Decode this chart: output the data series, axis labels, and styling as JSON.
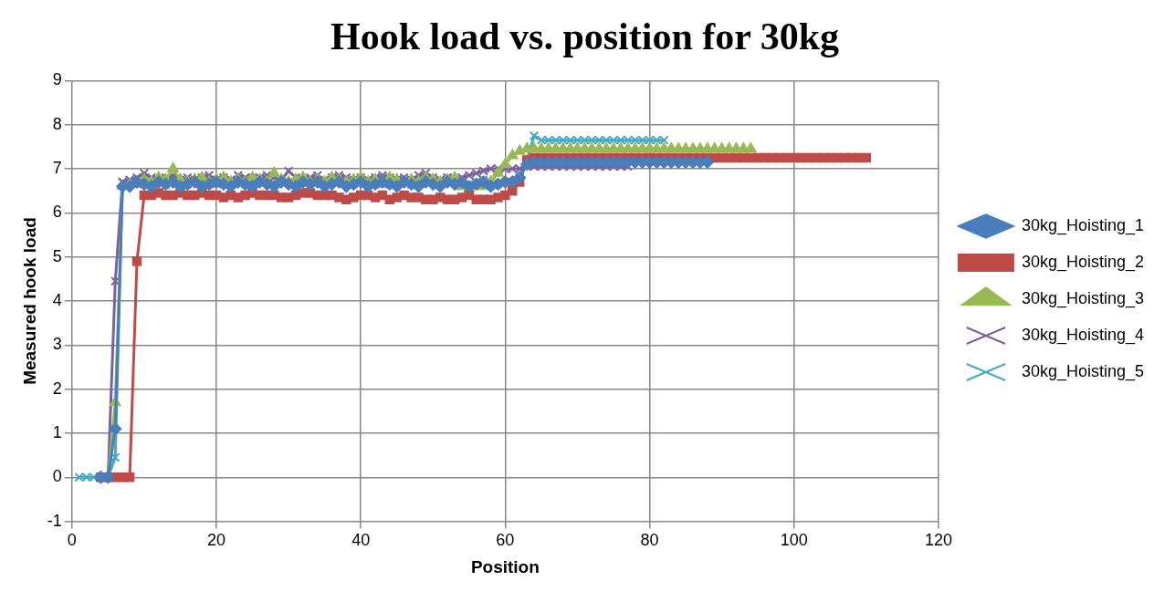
{
  "chart_data": {
    "type": "line",
    "title": "Hook load vs. position for 30kg",
    "xlabel": "Position",
    "ylabel": "Measured hook load",
    "x": [
      1,
      2,
      3,
      4,
      5,
      6,
      7,
      8,
      9,
      10,
      11,
      12,
      13,
      14,
      15,
      16,
      17,
      18,
      19,
      20,
      21,
      22,
      23,
      24,
      25,
      26,
      27,
      28,
      29,
      30,
      31,
      32,
      33,
      34,
      35,
      36,
      37,
      38,
      39,
      40,
      41,
      42,
      43,
      44,
      45,
      46,
      47,
      48,
      49,
      50,
      51,
      52,
      53,
      54,
      55,
      56,
      57,
      58,
      59,
      60,
      61,
      62,
      63,
      64,
      65,
      66,
      67,
      68,
      69,
      70,
      71,
      72,
      73,
      74,
      75,
      76,
      77,
      78,
      79,
      80,
      81,
      82,
      83,
      84,
      85,
      86,
      87,
      88,
      89,
      90,
      91,
      92,
      93,
      94,
      95,
      96,
      97,
      98,
      99,
      100,
      101,
      102,
      103,
      104,
      105,
      106,
      107,
      108,
      109,
      110
    ],
    "xlim": [
      0,
      120
    ],
    "xticks": [
      0,
      20,
      40,
      60,
      80,
      100,
      120
    ],
    "ylim": [
      -1,
      9
    ],
    "yticks": [
      -1,
      0,
      1,
      2,
      3,
      4,
      5,
      6,
      7,
      8,
      9
    ],
    "grid": true,
    "legend": "right",
    "line_style": "solid",
    "series": [
      {
        "name": "30kg_Hoisting_1",
        "color": "#4a7ebb",
        "marker": "diamond",
        "values": [
          null,
          null,
          null,
          0,
          0,
          1.1,
          6.6,
          6.6,
          6.7,
          6.65,
          6.6,
          6.7,
          6.65,
          6.7,
          6.6,
          6.65,
          6.7,
          6.6,
          6.65,
          6.7,
          6.65,
          6.6,
          6.7,
          6.65,
          6.6,
          6.7,
          6.65,
          6.6,
          6.7,
          6.65,
          6.6,
          6.7,
          6.65,
          6.7,
          6.6,
          6.65,
          6.7,
          6.6,
          6.65,
          6.7,
          6.6,
          6.65,
          6.7,
          6.65,
          6.6,
          6.7,
          6.65,
          6.6,
          6.7,
          6.65,
          6.6,
          6.7,
          6.65,
          6.7,
          6.6,
          6.65,
          6.7,
          6.6,
          6.65,
          6.7,
          6.7,
          6.8,
          7.1,
          7.15,
          7.15,
          7.15,
          7.15,
          7.15,
          7.15,
          7.15,
          7.15,
          7.15,
          7.15,
          7.15,
          7.15,
          7.15,
          7.15,
          7.15,
          7.15,
          7.15,
          7.15,
          7.15,
          7.15,
          7.15,
          7.15,
          7.15,
          7.15,
          7.15,
          null,
          null,
          null,
          null,
          null,
          null,
          null,
          null,
          null,
          null,
          null,
          null,
          null,
          null,
          null,
          null,
          null,
          null,
          null,
          null,
          null,
          null
        ]
      },
      {
        "name": "30kg_Hoisting_2",
        "color": "#be4b48",
        "marker": "square",
        "values": [
          null,
          null,
          null,
          0,
          0,
          0,
          0,
          0,
          4.9,
          6.4,
          6.4,
          6.45,
          6.4,
          6.4,
          6.45,
          6.4,
          6.4,
          6.45,
          6.4,
          6.4,
          6.35,
          6.4,
          6.35,
          6.4,
          6.45,
          6.4,
          6.4,
          6.4,
          6.35,
          6.35,
          6.4,
          6.45,
          6.45,
          6.4,
          6.4,
          6.4,
          6.35,
          6.3,
          6.35,
          6.4,
          6.4,
          6.35,
          6.4,
          6.3,
          6.35,
          6.4,
          6.35,
          6.35,
          6.3,
          6.3,
          6.35,
          6.3,
          6.3,
          6.35,
          6.4,
          6.3,
          6.3,
          6.3,
          6.35,
          6.4,
          6.5,
          6.7,
          7.2,
          7.25,
          7.25,
          7.25,
          7.25,
          7.25,
          7.25,
          7.25,
          7.25,
          7.25,
          7.25,
          7.25,
          7.25,
          7.25,
          7.25,
          7.25,
          7.25,
          7.25,
          7.25,
          7.25,
          7.25,
          7.25,
          7.25,
          7.25,
          7.25,
          7.25,
          7.25,
          7.25,
          7.25,
          7.25,
          7.25,
          7.25,
          7.25,
          7.25,
          7.25,
          7.25,
          7.25,
          7.25,
          7.25,
          7.25,
          7.25,
          7.25,
          7.25,
          7.25,
          7.25,
          7.25,
          7.25,
          7.25
        ]
      },
      {
        "name": "30kg_Hoisting_3",
        "color": "#98b954",
        "marker": "triangle",
        "values": [
          null,
          null,
          null,
          0,
          0,
          1.7,
          6.6,
          6.65,
          6.7,
          6.75,
          6.7,
          6.8,
          6.75,
          7.0,
          6.75,
          6.7,
          6.75,
          6.8,
          6.7,
          6.75,
          6.8,
          6.7,
          6.75,
          6.7,
          6.8,
          6.75,
          6.7,
          6.9,
          6.75,
          6.7,
          6.75,
          6.8,
          6.7,
          6.75,
          6.7,
          6.8,
          6.75,
          6.7,
          6.75,
          6.8,
          6.7,
          6.75,
          6.7,
          6.8,
          6.75,
          6.7,
          6.75,
          6.7,
          6.8,
          6.75,
          6.7,
          6.75,
          6.8,
          6.6,
          6.55,
          6.6,
          6.6,
          6.7,
          6.9,
          7.1,
          7.3,
          7.4,
          7.45,
          7.45,
          7.45,
          7.45,
          7.45,
          7.45,
          7.45,
          7.45,
          7.45,
          7.45,
          7.45,
          7.45,
          7.45,
          7.45,
          7.45,
          7.45,
          7.45,
          7.45,
          7.45,
          7.45,
          7.45,
          7.45,
          7.45,
          7.45,
          7.45,
          7.45,
          7.45,
          7.45,
          7.45,
          7.45,
          7.45,
          7.45,
          null,
          null,
          null,
          null,
          null,
          null,
          null,
          null,
          null,
          null,
          null,
          null,
          null,
          null,
          null,
          null
        ]
      },
      {
        "name": "30kg_Hoisting_4",
        "color": "#7d60a0",
        "marker": "cross",
        "values": [
          null,
          null,
          null,
          0,
          0,
          4.45,
          6.7,
          6.75,
          6.8,
          6.9,
          6.8,
          6.75,
          6.8,
          6.85,
          6.75,
          6.8,
          6.75,
          6.8,
          6.85,
          6.75,
          6.8,
          6.75,
          6.85,
          6.8,
          6.75,
          6.8,
          6.85,
          6.8,
          6.75,
          6.95,
          6.8,
          6.75,
          6.8,
          6.85,
          6.75,
          6.8,
          6.85,
          6.8,
          6.75,
          6.8,
          6.75,
          6.8,
          6.85,
          6.8,
          6.75,
          6.8,
          6.75,
          6.85,
          6.9,
          6.8,
          6.75,
          6.8,
          6.75,
          6.8,
          6.85,
          6.9,
          6.95,
          7.0,
          7.0,
          7.0,
          7.0,
          7.0,
          7.05,
          7.05,
          7.05,
          7.05,
          7.05,
          7.05,
          7.05,
          7.05,
          7.05,
          7.05,
          7.05,
          7.05,
          7.05,
          7.05,
          7.05,
          null,
          null,
          null,
          null,
          null,
          null,
          null,
          null,
          null,
          null,
          null,
          null,
          null,
          null,
          null,
          null,
          null,
          null,
          null,
          null,
          null,
          null,
          null,
          null,
          null,
          null,
          null,
          null,
          null,
          null,
          null,
          null,
          null
        ]
      },
      {
        "name": "30kg_Hoisting_5",
        "color": "#46aac5",
        "marker": "cross",
        "values": [
          0,
          0,
          0,
          0,
          0,
          0.45,
          6.7,
          6.7,
          6.65,
          6.7,
          6.75,
          6.7,
          6.65,
          6.8,
          6.7,
          6.65,
          6.7,
          6.75,
          6.7,
          6.65,
          6.7,
          6.75,
          6.7,
          6.65,
          6.8,
          6.7,
          6.7,
          6.65,
          6.75,
          6.7,
          6.65,
          6.7,
          6.75,
          6.7,
          6.65,
          6.7,
          6.75,
          6.7,
          6.65,
          6.7,
          6.75,
          6.7,
          6.65,
          6.7,
          6.75,
          6.7,
          6.65,
          6.7,
          6.75,
          6.7,
          6.65,
          6.8,
          6.7,
          6.6,
          6.65,
          6.7,
          6.75,
          6.7,
          6.65,
          6.7,
          6.7,
          6.8,
          7.2,
          7.75,
          7.65,
          7.65,
          7.65,
          7.65,
          7.65,
          7.65,
          7.65,
          7.65,
          7.65,
          7.65,
          7.65,
          7.65,
          7.65,
          7.65,
          7.65,
          7.65,
          7.65,
          7.65,
          null,
          null,
          null,
          null,
          null,
          null,
          null,
          null,
          null,
          null,
          null,
          null,
          null,
          null,
          null,
          null,
          null,
          null,
          null,
          null,
          null,
          null,
          null,
          null,
          null,
          null,
          null,
          null
        ]
      }
    ]
  }
}
